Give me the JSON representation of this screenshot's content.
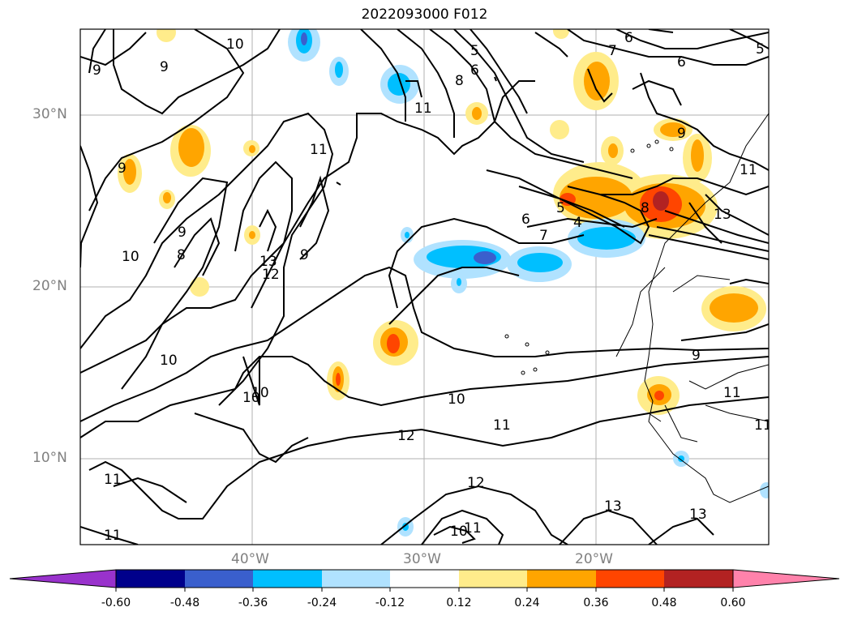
{
  "title": "2022093000 F012",
  "lat_labels": [
    "30°N",
    "20°N",
    "10°N"
  ],
  "lon_labels": [
    "40°W",
    "30°W",
    "20°W"
  ],
  "colorbar": {
    "ticks": [
      "-0.60",
      "-0.48",
      "-0.36",
      "-0.24",
      "-0.12",
      "0.12",
      "0.24",
      "0.36",
      "0.48",
      "0.60"
    ],
    "colors": [
      "#9932cc",
      "#00008b",
      "#3a5fcd",
      "#00bfff",
      "#b0e2ff",
      "#ffffff",
      "#ffec8b",
      "#ffa500",
      "#ff4500",
      "#b22222",
      "#ff82ab"
    ]
  },
  "contour_labels": [
    "10",
    "9",
    "9",
    "11",
    "11",
    "8",
    "6",
    "5",
    "6",
    "7",
    "6",
    "5",
    "9",
    "9",
    "8",
    "6",
    "5",
    "4",
    "7",
    "8",
    "9",
    "10",
    "13",
    "12",
    "9",
    "10",
    "9",
    "10",
    "10",
    "10",
    "11",
    "12",
    "11",
    "11",
    "11",
    "12",
    "10",
    "11",
    "13",
    "13",
    "11",
    "13",
    "11"
  ]
}
